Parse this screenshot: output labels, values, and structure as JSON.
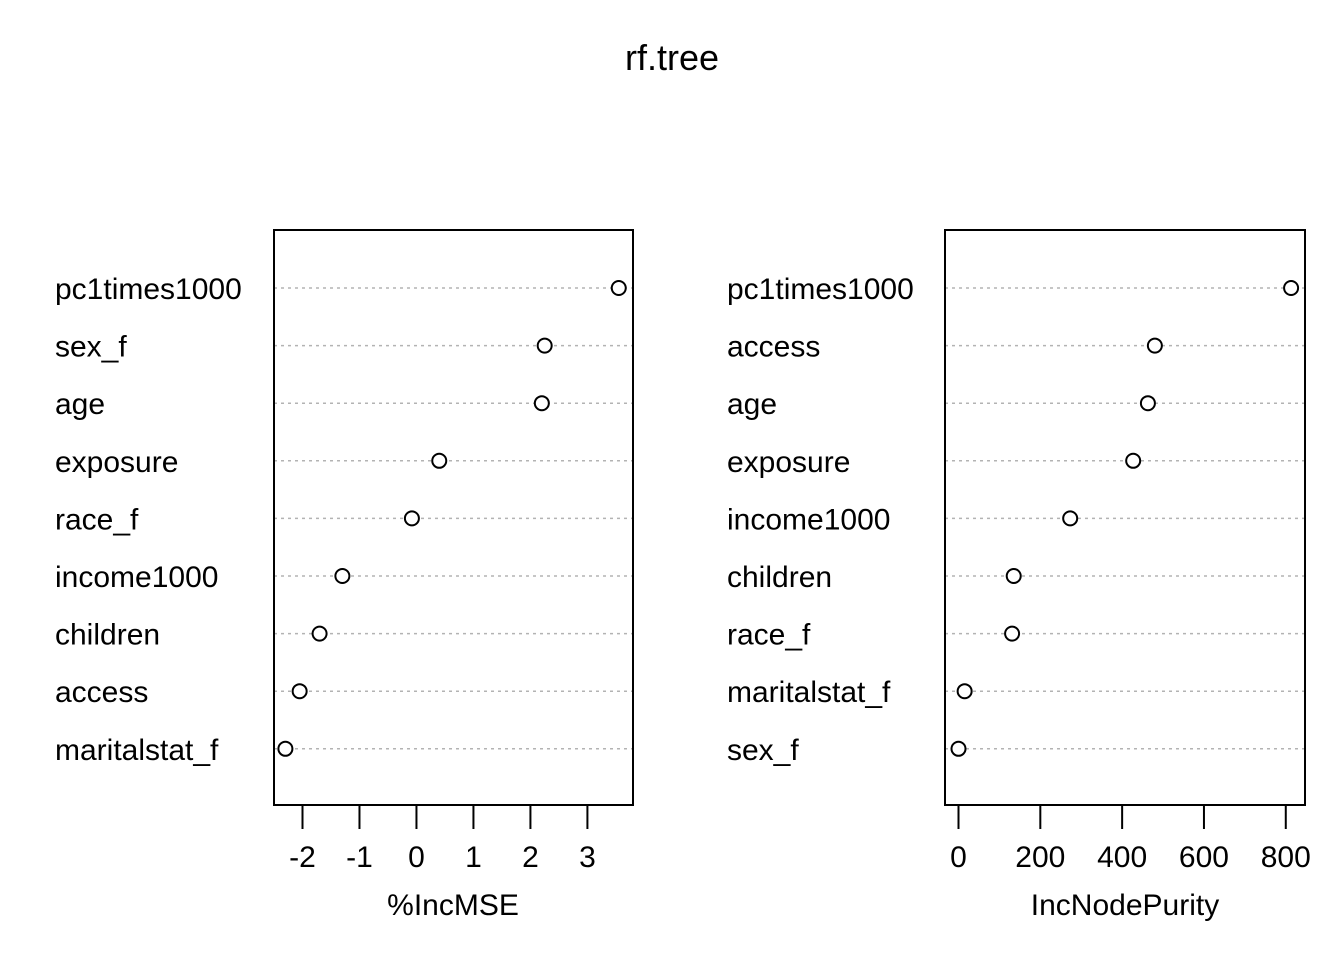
{
  "title": "rf.tree",
  "chart_data": [
    {
      "type": "scatter",
      "style": "dotchart",
      "xlabel": "%IncMSE",
      "xlim": [
        -2.5,
        3.8
      ],
      "xticks": [
        "-2",
        "-1",
        "0",
        "1",
        "2",
        "3"
      ],
      "tick_values": [
        -2,
        -1,
        0,
        1,
        2,
        3
      ],
      "grid": "horizontal dotted",
      "categories": [
        "pc1times1000",
        "sex_f",
        "age",
        "exposure",
        "race_f",
        "income1000",
        "children",
        "access",
        "maritalstat_f"
      ],
      "values": [
        3.55,
        2.25,
        2.2,
        0.4,
        -0.08,
        -1.3,
        -1.7,
        -2.05,
        -2.3
      ]
    },
    {
      "type": "scatter",
      "style": "dotchart",
      "xlabel": "IncNodePurity",
      "xlim": [
        -33,
        847
      ],
      "xticks": [
        "0",
        "200",
        "400",
        "600",
        "800"
      ],
      "tick_values": [
        0,
        200,
        400,
        600,
        800
      ],
      "grid": "horizontal dotted",
      "categories": [
        "pc1times1000",
        "access",
        "age",
        "exposure",
        "income1000",
        "children",
        "race_f",
        "maritalstat_f",
        "sex_f"
      ],
      "values": [
        813,
        480,
        463,
        427,
        273,
        135,
        131,
        15,
        0
      ]
    }
  ]
}
